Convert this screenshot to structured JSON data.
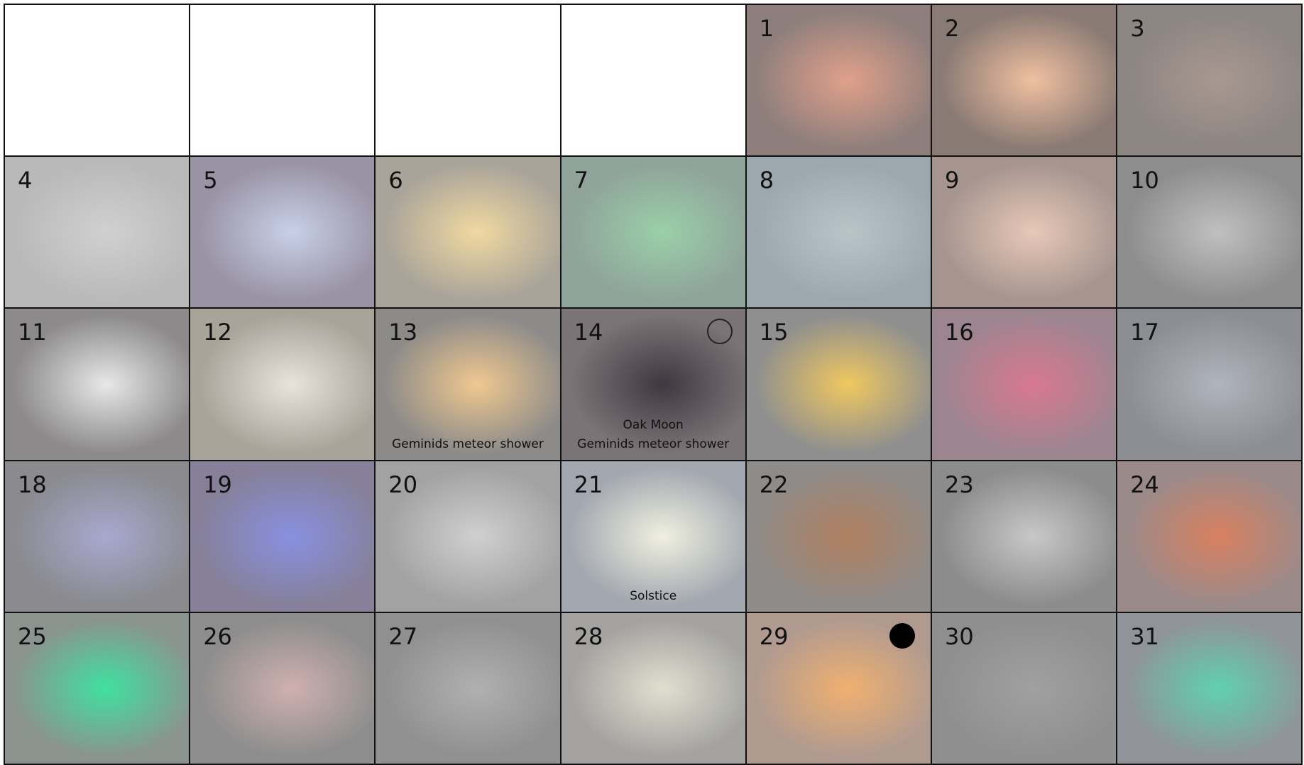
{
  "calendar": {
    "days": [
      {
        "label": "1"
      },
      {
        "label": "2"
      },
      {
        "label": "3"
      },
      {
        "label": "4"
      },
      {
        "label": "5"
      },
      {
        "label": "6"
      },
      {
        "label": "7"
      },
      {
        "label": "8"
      },
      {
        "label": "9"
      },
      {
        "label": "10"
      },
      {
        "label": "11"
      },
      {
        "label": "12"
      },
      {
        "label": "13",
        "captions": [
          "Geminids meteor shower"
        ]
      },
      {
        "label": "14",
        "captions": [
          "Oak Moon",
          "Geminids meteor shower"
        ]
      },
      {
        "label": "15"
      },
      {
        "label": "16"
      },
      {
        "label": "17"
      },
      {
        "label": "18"
      },
      {
        "label": "19"
      },
      {
        "label": "20"
      },
      {
        "label": "21",
        "captions": [
          "Solstice"
        ]
      },
      {
        "label": "22"
      },
      {
        "label": "23"
      },
      {
        "label": "24"
      },
      {
        "label": "25"
      },
      {
        "label": "26"
      },
      {
        "label": "27"
      },
      {
        "label": "28"
      },
      {
        "label": "29"
      },
      {
        "label": "30"
      },
      {
        "label": "31"
      }
    ]
  }
}
